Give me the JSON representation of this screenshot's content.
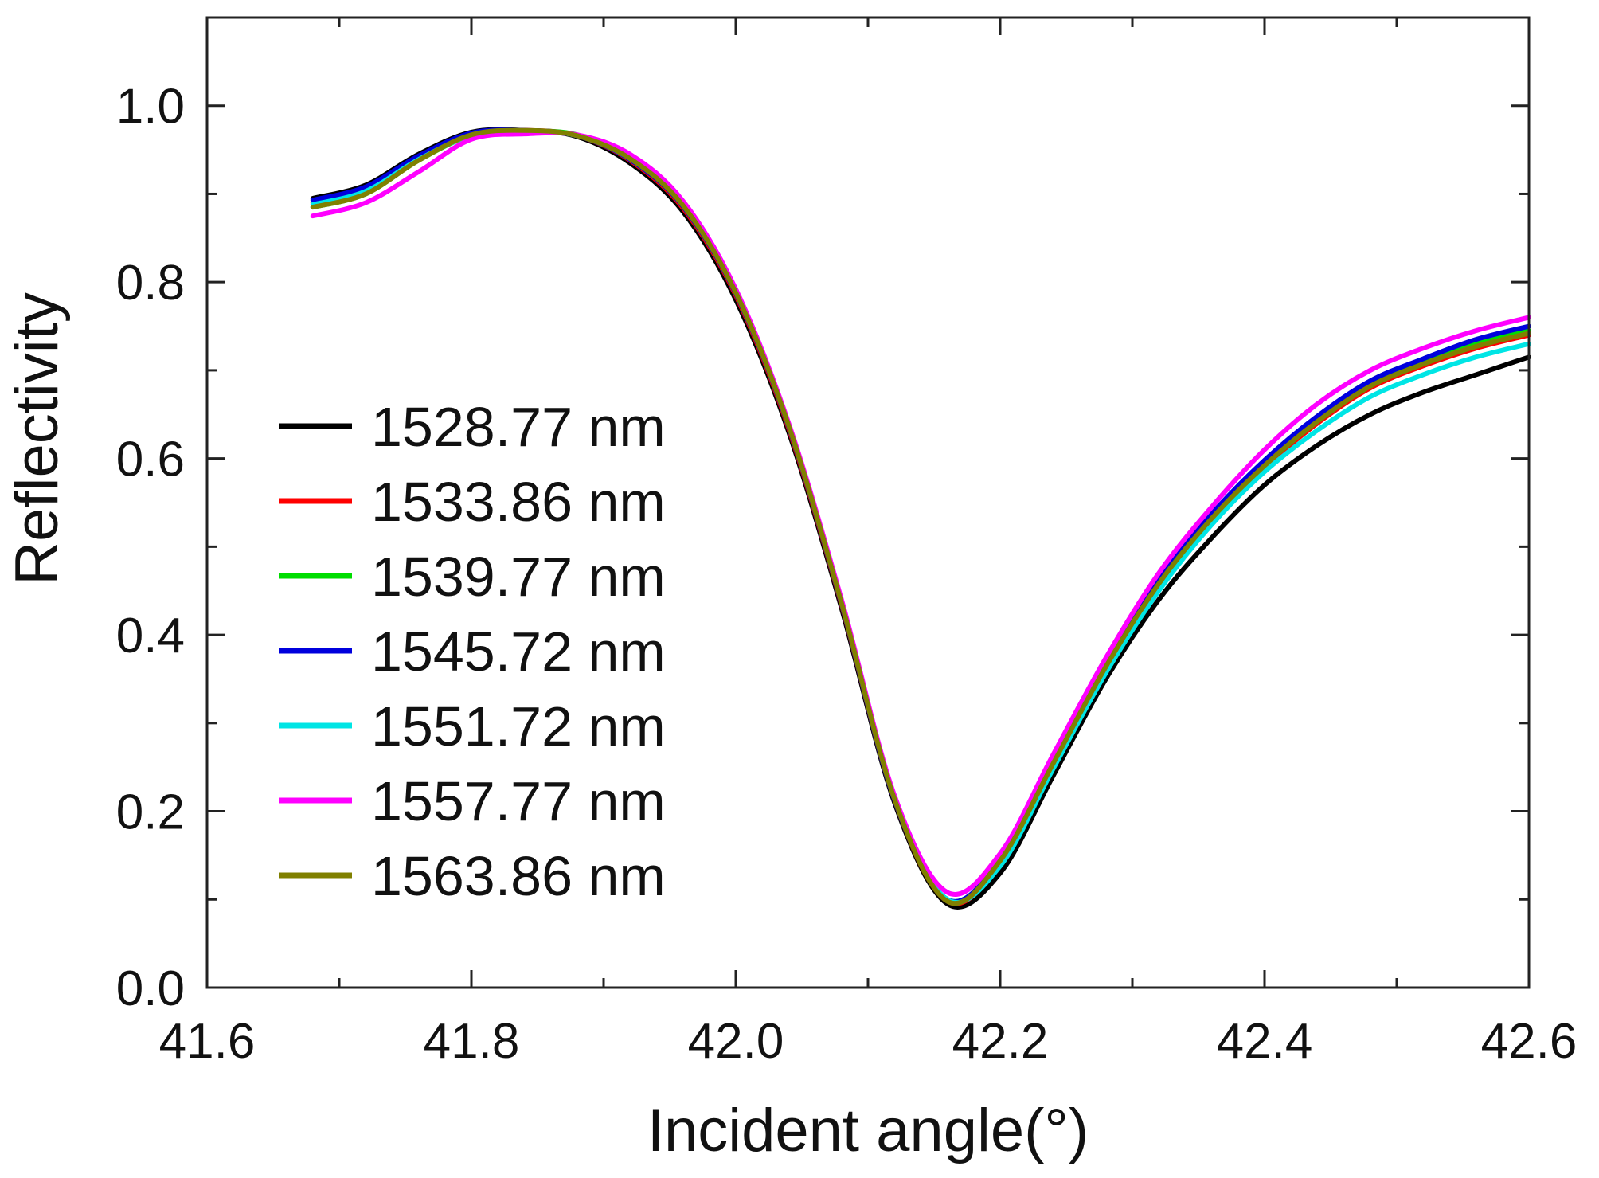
{
  "chart_data": {
    "type": "line",
    "title": "",
    "xlabel": "Incident angle(°)",
    "ylabel": "Reflectivity",
    "xlim": [
      41.6,
      42.6
    ],
    "ylim": [
      0.0,
      1.1
    ],
    "xticks": [
      41.6,
      41.8,
      42.0,
      42.2,
      42.4,
      42.6
    ],
    "xtick_labels": [
      "41.6",
      "41.8",
      "42.0",
      "42.2",
      "42.4",
      "42.6"
    ],
    "yticks": [
      0.0,
      0.2,
      0.4,
      0.6,
      0.8,
      1.0
    ],
    "ytick_labels": [
      "0.0",
      "0.2",
      "0.4",
      "0.6",
      "0.8",
      "1.0"
    ],
    "grid": false,
    "legend_position": "left",
    "x": [
      41.68,
      41.72,
      41.76,
      41.8,
      41.84,
      41.88,
      41.92,
      41.96,
      42.0,
      42.04,
      42.08,
      42.12,
      42.16,
      42.2,
      42.24,
      42.28,
      42.32,
      42.36,
      42.4,
      42.44,
      42.48,
      42.52,
      42.56,
      42.6
    ],
    "series": [
      {
        "name": "1528.77 nm",
        "color": "#000000",
        "values": [
          0.895,
          0.91,
          0.945,
          0.97,
          0.972,
          0.965,
          0.935,
          0.88,
          0.78,
          0.63,
          0.43,
          0.21,
          0.095,
          0.13,
          0.24,
          0.35,
          0.44,
          0.51,
          0.57,
          0.615,
          0.65,
          0.675,
          0.695,
          0.715
        ]
      },
      {
        "name": "1533.86 nm",
        "color": "#ff0000",
        "values": [
          0.89,
          0.905,
          0.94,
          0.968,
          0.972,
          0.966,
          0.938,
          0.884,
          0.785,
          0.634,
          0.434,
          0.213,
          0.098,
          0.14,
          0.25,
          0.36,
          0.455,
          0.53,
          0.59,
          0.64,
          0.68,
          0.705,
          0.725,
          0.74
        ]
      },
      {
        "name": "1539.77 nm",
        "color": "#00dd00",
        "values": [
          0.885,
          0.9,
          0.938,
          0.966,
          0.971,
          0.967,
          0.94,
          0.888,
          0.79,
          0.638,
          0.436,
          0.214,
          0.1,
          0.145,
          0.255,
          0.365,
          0.46,
          0.535,
          0.595,
          0.645,
          0.685,
          0.71,
          0.73,
          0.745
        ]
      },
      {
        "name": "1545.72 nm",
        "color": "#0000dd",
        "values": [
          0.893,
          0.908,
          0.943,
          0.969,
          0.972,
          0.966,
          0.939,
          0.886,
          0.787,
          0.636,
          0.435,
          0.213,
          0.1,
          0.145,
          0.258,
          0.368,
          0.462,
          0.537,
          0.598,
          0.648,
          0.688,
          0.713,
          0.735,
          0.75
        ]
      },
      {
        "name": "1551.72 nm",
        "color": "#00e5e5",
        "values": [
          0.888,
          0.903,
          0.939,
          0.966,
          0.971,
          0.966,
          0.94,
          0.888,
          0.79,
          0.638,
          0.437,
          0.215,
          0.1,
          0.138,
          0.248,
          0.357,
          0.45,
          0.525,
          0.585,
          0.632,
          0.67,
          0.695,
          0.715,
          0.73
        ]
      },
      {
        "name": "1557.77 nm",
        "color": "#ff00ff",
        "values": [
          0.875,
          0.89,
          0.925,
          0.962,
          0.968,
          0.967,
          0.945,
          0.892,
          0.792,
          0.64,
          0.44,
          0.218,
          0.108,
          0.152,
          0.264,
          0.374,
          0.47,
          0.545,
          0.61,
          0.662,
          0.7,
          0.725,
          0.745,
          0.76
        ]
      },
      {
        "name": "1563.86 nm",
        "color": "#808000",
        "values": [
          0.885,
          0.9,
          0.938,
          0.967,
          0.972,
          0.966,
          0.94,
          0.887,
          0.788,
          0.637,
          0.436,
          0.214,
          0.098,
          0.144,
          0.254,
          0.364,
          0.458,
          0.532,
          0.592,
          0.642,
          0.682,
          0.707,
          0.727,
          0.742
        ]
      }
    ]
  }
}
